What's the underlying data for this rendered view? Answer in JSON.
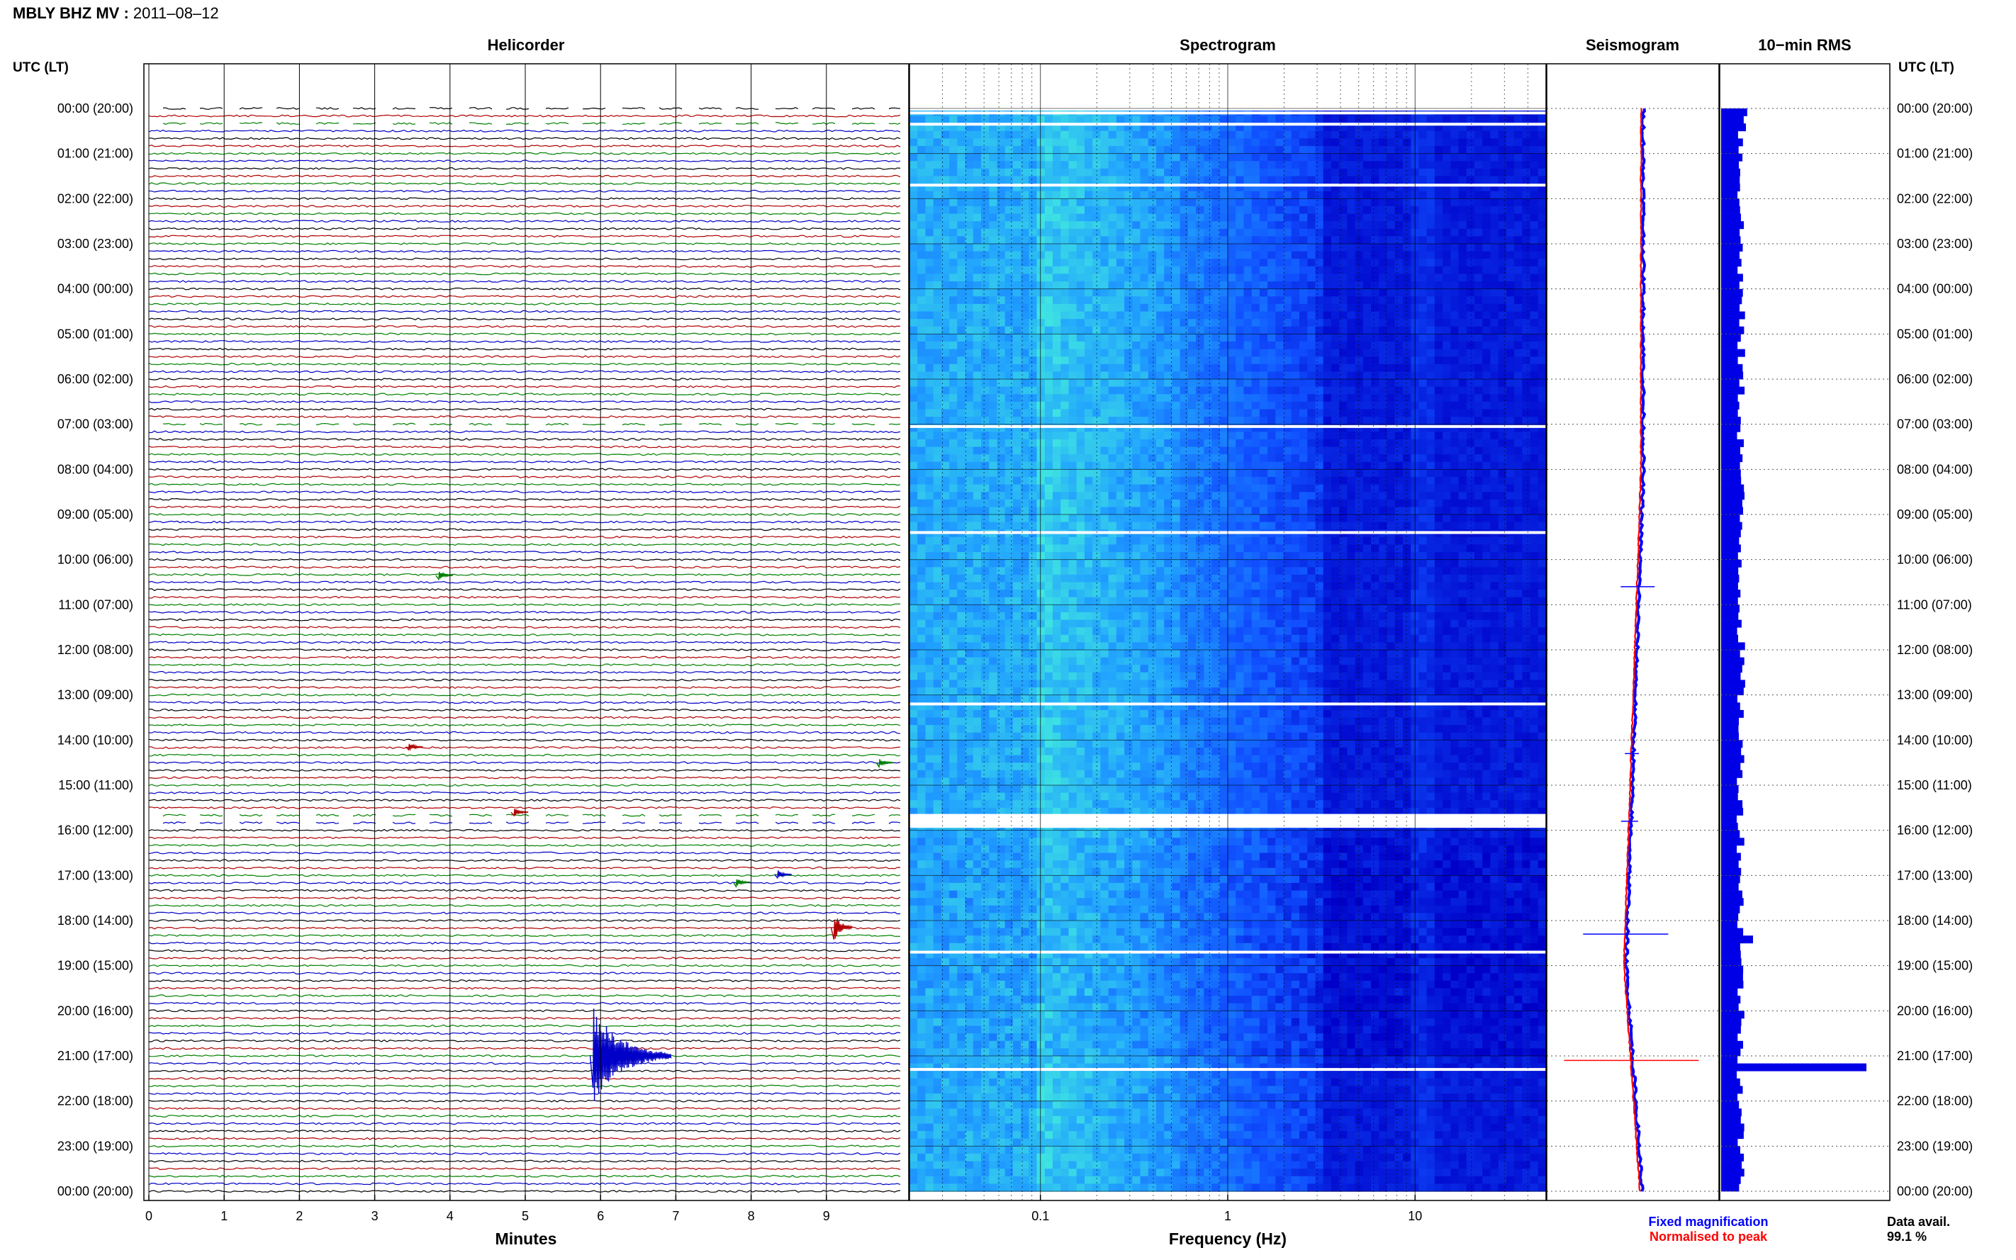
{
  "header": {
    "station": "MBLY BHZ MV",
    "date": "2011–08–12"
  },
  "time_axis": {
    "left_label": "UTC (LT)",
    "right_label": "UTC (LT)",
    "rows": [
      "00:00 (20:00)",
      "01:00 (21:00)",
      "02:00 (22:00)",
      "03:00 (23:00)",
      "04:00 (00:00)",
      "05:00 (01:00)",
      "06:00 (02:00)",
      "07:00 (03:00)",
      "08:00 (04:00)",
      "09:00 (05:00)",
      "10:00 (06:00)",
      "11:00 (07:00)",
      "12:00 (08:00)",
      "13:00 (09:00)",
      "14:00 (10:00)",
      "15:00 (11:00)",
      "16:00 (12:00)",
      "17:00 (13:00)",
      "18:00 (14:00)",
      "19:00 (15:00)",
      "20:00 (16:00)",
      "21:00 (17:00)",
      "22:00 (18:00)",
      "23:00 (19:00)",
      "00:00 (20:00)"
    ]
  },
  "chart_data": [
    {
      "type": "line",
      "panel": "helicorder",
      "title": "Helicorder",
      "xlabel": "Minutes",
      "xticks": [
        0,
        1,
        2,
        3,
        4,
        5,
        6,
        7,
        8,
        9
      ],
      "xlim": [
        0,
        10
      ],
      "traces_per_hour": 6,
      "trace_colors": [
        "#000000",
        "#b00000",
        "#008000",
        "#0000c8"
      ],
      "events": [
        {
          "hour": 10.35,
          "minute": 3.85,
          "color": "#008000",
          "amplitude": "small"
        },
        {
          "hour": 14.15,
          "minute": 3.45,
          "color": "#b00000",
          "amplitude": "small"
        },
        {
          "hour": 14.5,
          "minute": 9.7,
          "color": "#008000",
          "amplitude": "small"
        },
        {
          "hour": 15.6,
          "minute": 4.85,
          "color": "#b00000",
          "amplitude": "small"
        },
        {
          "hour": 16.98,
          "minute": 8.35,
          "color": "#0000c8",
          "amplitude": "small"
        },
        {
          "hour": 17.15,
          "minute": 7.8,
          "color": "#008000",
          "amplitude": "small"
        },
        {
          "hour": 18.15,
          "minute": 9.1,
          "color": "#b00000",
          "amplitude": "medium"
        },
        {
          "hour": 21.0,
          "minute": 5.9,
          "color": "#0000c8",
          "amplitude": "large"
        }
      ],
      "gaps": [
        {
          "hour": 0.0
        },
        {
          "hour": 0.3
        },
        {
          "hour": 7.05
        },
        {
          "hour": 15.7
        },
        {
          "hour": 15.85
        }
      ]
    },
    {
      "type": "heatmap",
      "panel": "spectrogram",
      "title": "Spectrogram",
      "xlabel": "Frequency (Hz)",
      "xscale": "log",
      "xticks": [
        0.1,
        1,
        10
      ],
      "xtick_labels": [
        "0.1",
        "1",
        "10"
      ],
      "xlim": [
        0.02,
        50
      ],
      "colormap": [
        "#0000c8",
        "#1050ff",
        "#20a0ff",
        "#40e8e0"
      ],
      "gaps_hours": [
        0.1,
        0.35,
        1.7,
        7.05,
        9.4,
        13.2,
        15.7,
        15.85,
        18.7,
        21.3
      ]
    },
    {
      "type": "line",
      "panel": "seismogram",
      "title": "Seismogram",
      "series": [
        {
          "name": "Fixed magnification",
          "color": "#0000ff"
        },
        {
          "name": "Normalised to peak",
          "color": "#ff0000"
        }
      ]
    },
    {
      "type": "bar",
      "panel": "rms",
      "title": "10−min RMS",
      "color": "#0000e6",
      "peak_hour": 21.1,
      "data_availability_label": "Data avail.",
      "data_availability_value": "99.1 %"
    }
  ]
}
